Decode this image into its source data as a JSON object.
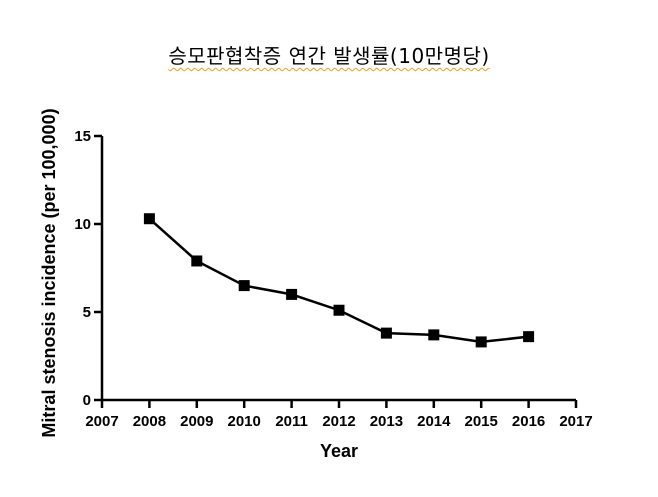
{
  "chart_data": {
    "type": "line",
    "title": "승모판협착증 연간 발생률(10만명당)",
    "xlabel": "Year",
    "ylabel": "Mitral stenosis incidence (per 100,000)",
    "xlim": [
      2007,
      2017
    ],
    "ylim": [
      0,
      15
    ],
    "xticks": [
      "2007",
      "2008",
      "2009",
      "2010",
      "2011",
      "2012",
      "2013",
      "2014",
      "2015",
      "2016",
      "2017"
    ],
    "yticks": [
      "0",
      "5",
      "10",
      "15"
    ],
    "grid": false,
    "legend": "none",
    "series": [
      {
        "color": "#000000",
        "marker": "square",
        "x": [
          2008,
          2009,
          2010,
          2011,
          2012,
          2013,
          2014,
          2015,
          2016
        ],
        "y": [
          10.3,
          7.9,
          6.5,
          6.0,
          5.1,
          3.8,
          3.7,
          3.3,
          3.6
        ]
      }
    ]
  }
}
